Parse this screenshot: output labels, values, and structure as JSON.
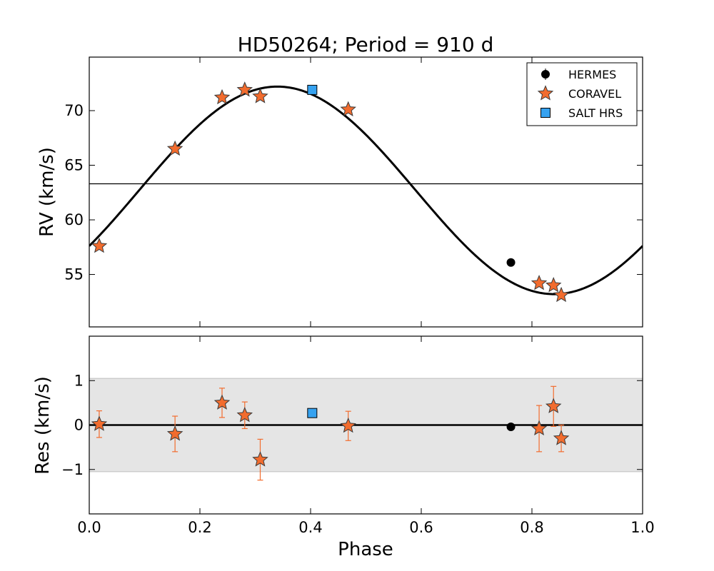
{
  "chart_data": {
    "type": "scatter",
    "title": "HD50264; Period = 910 d",
    "xlabel": "Phase",
    "xlim": [
      0.0,
      1.0
    ],
    "xticks": [
      "0.0",
      "0.2",
      "0.4",
      "0.6",
      "0.8",
      "1.0"
    ],
    "panels": {
      "rv": {
        "ylabel": "RV (km/s)",
        "ylim": [
          50.2,
          74.9
        ],
        "yticks": [
          "55",
          "60",
          "65",
          "70"
        ],
        "systemic_velocity": 63.3,
        "model": {
          "name": "orbit fit",
          "offset": 62.7,
          "amplitude": 9.5,
          "phase_peak": 0.34,
          "color": "#000000"
        }
      },
      "residuals": {
        "ylabel": "Res (km/s)",
        "ylim": [
          -2.0,
          2.0
        ],
        "yticks": [
          "1",
          "0",
          "−1"
        ],
        "band": [
          -1.05,
          1.05
        ],
        "band_color": "#e5e5e5"
      }
    },
    "legend": {
      "position": "top-right",
      "entries": [
        {
          "label": "HERMES",
          "marker": "circle",
          "color": "#000000"
        },
        {
          "label": "CORAVEL",
          "marker": "star",
          "color": "#f26c2e"
        },
        {
          "label": "SALT HRS",
          "marker": "square",
          "color": "#36a2f0"
        }
      ]
    },
    "series": [
      {
        "name": "HERMES",
        "points": [
          {
            "phase": 0.762,
            "rv": 56.1,
            "res": -0.04,
            "err": 0.0
          }
        ]
      },
      {
        "name": "CORAVEL",
        "points": [
          {
            "phase": 0.018,
            "rv": 57.6,
            "res": 0.02,
            "err": 0.3
          },
          {
            "phase": 0.155,
            "rv": 66.5,
            "res": -0.2,
            "err": 0.4
          },
          {
            "phase": 0.24,
            "rv": 71.2,
            "res": 0.5,
            "err": 0.33
          },
          {
            "phase": 0.281,
            "rv": 71.9,
            "res": 0.22,
            "err": 0.3
          },
          {
            "phase": 0.309,
            "rv": 71.3,
            "res": -0.78,
            "err": 0.46
          },
          {
            "phase": 0.468,
            "rv": 70.1,
            "res": -0.02,
            "err": 0.33
          },
          {
            "phase": 0.813,
            "rv": 54.2,
            "res": -0.08,
            "err": 0.52
          },
          {
            "phase": 0.839,
            "rv": 54.0,
            "res": 0.42,
            "err": 0.45
          },
          {
            "phase": 0.853,
            "rv": 53.1,
            "res": -0.3,
            "err": 0.3
          }
        ]
      },
      {
        "name": "SALT HRS",
        "points": [
          {
            "phase": 0.403,
            "rv": 71.9,
            "res": 0.27,
            "err": 0.0
          }
        ]
      }
    ]
  }
}
